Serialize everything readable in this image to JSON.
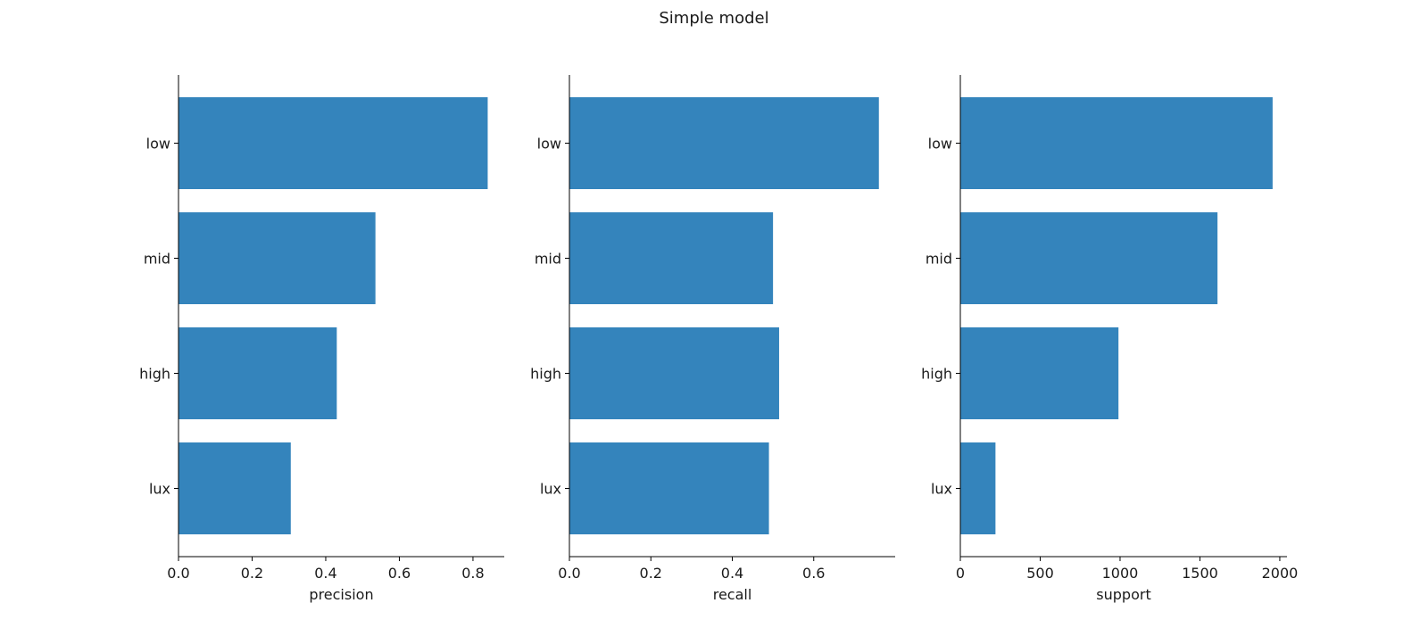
{
  "figure": {
    "title": "Simple model"
  },
  "chart_data": [
    {
      "type": "bar",
      "orientation": "horizontal",
      "categories": [
        "low",
        "mid",
        "high",
        "lux"
      ],
      "values": [
        0.84,
        0.535,
        0.43,
        0.305
      ],
      "xlabel": "precision",
      "ylabel": "",
      "xlim": [
        0,
        0.885
      ],
      "xticks": [
        0,
        0.2,
        0.4,
        0.6,
        0.8
      ],
      "xtick_labels": [
        "0.0",
        "0.2",
        "0.4",
        "0.6",
        "0.8"
      ],
      "grid": false,
      "color": "#3484bc"
    },
    {
      "type": "bar",
      "orientation": "horizontal",
      "categories": [
        "low",
        "mid",
        "high",
        "lux"
      ],
      "values": [
        0.76,
        0.5,
        0.515,
        0.49
      ],
      "xlabel": "recall",
      "ylabel": "",
      "xlim": [
        0,
        0.8
      ],
      "xticks": [
        0,
        0.2,
        0.4,
        0.6
      ],
      "xtick_labels": [
        "0.0",
        "0.2",
        "0.4",
        "0.6"
      ],
      "grid": false,
      "color": "#3484bc"
    },
    {
      "type": "bar",
      "orientation": "horizontal",
      "categories": [
        "low",
        "mid",
        "high",
        "lux"
      ],
      "values": [
        1955,
        1610,
        990,
        220
      ],
      "xlabel": "support",
      "ylabel": "",
      "xlim": [
        0,
        2045
      ],
      "xticks": [
        0,
        500,
        1000,
        1500,
        2000
      ],
      "xtick_labels": [
        "0",
        "500",
        "1000",
        "1500",
        "2000"
      ],
      "grid": false,
      "color": "#3484bc"
    }
  ]
}
